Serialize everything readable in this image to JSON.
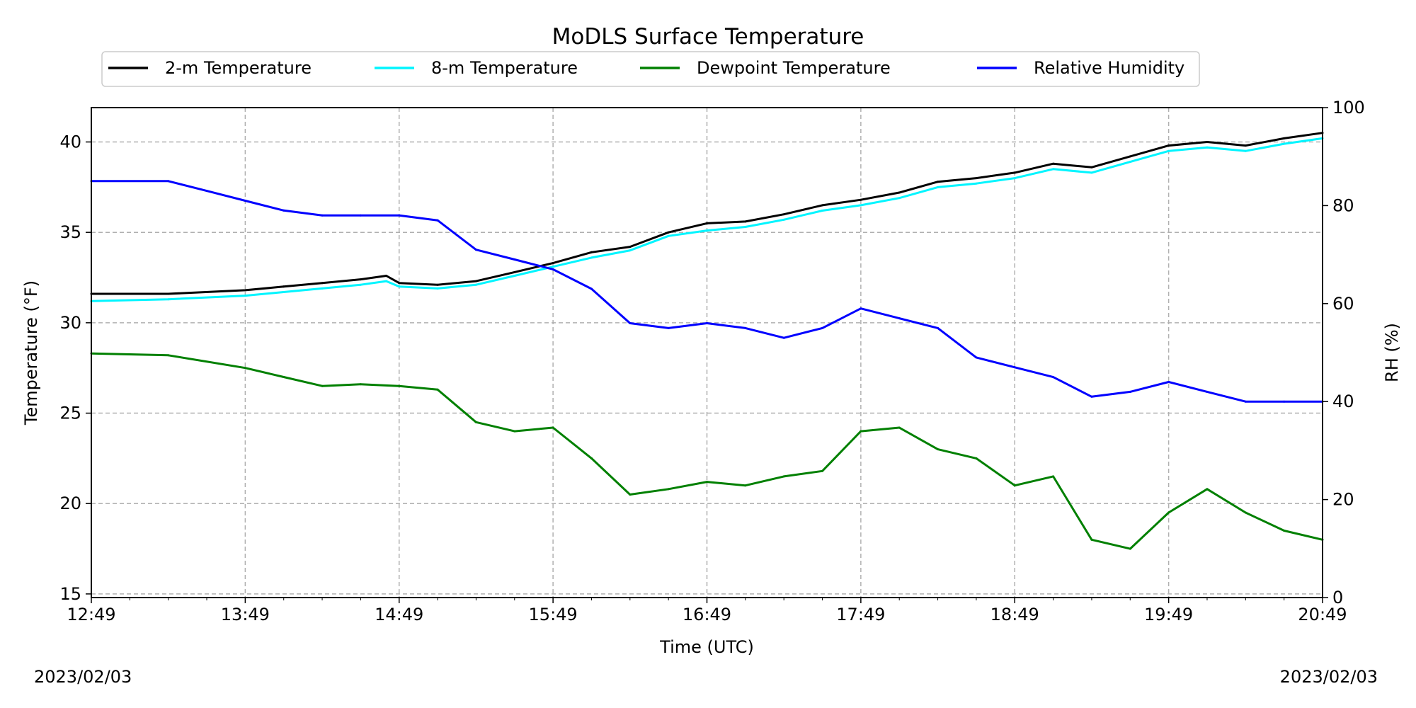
{
  "chart_data": {
    "type": "line",
    "title": "MoDLS Surface Temperature",
    "xlabel": "Time (UTC)",
    "ylabel": "Temperature ($^\\circ$F)",
    "ylabel_display": "Temperature (°F)",
    "y2label": "RH (%)",
    "xlim": [
      "12:49",
      "20:49"
    ],
    "ylim": [
      14.8,
      41.9
    ],
    "y2lim": [
      0,
      100
    ],
    "x_ticks": [
      "12:49",
      "13:49",
      "14:49",
      "15:49",
      "16:49",
      "17:49",
      "18:49",
      "19:49",
      "20:49"
    ],
    "y_ticks": [
      "15",
      "20",
      "25",
      "30",
      "35",
      "40"
    ],
    "y2_ticks": [
      "0",
      "20",
      "40",
      "60",
      "80",
      "100"
    ],
    "grid": true,
    "legend_position": "top",
    "series": [
      {
        "name": "2-m Temperature",
        "axis": "left",
        "color": "#000000",
        "x": [
          "12:49",
          "13:19",
          "13:49",
          "14:04",
          "14:19",
          "14:34",
          "14:44",
          "14:49",
          "15:04",
          "15:19",
          "15:34",
          "15:49",
          "16:04",
          "16:19",
          "16:34",
          "16:49",
          "17:04",
          "17:19",
          "17:34",
          "17:49",
          "18:04",
          "18:19",
          "18:34",
          "18:49",
          "19:04",
          "19:19",
          "19:34",
          "19:49",
          "20:04",
          "20:19",
          "20:34",
          "20:49"
        ],
        "values": [
          31.6,
          31.6,
          31.8,
          32.0,
          32.2,
          32.4,
          32.6,
          32.2,
          32.1,
          32.3,
          32.8,
          33.3,
          33.9,
          34.2,
          35.0,
          35.5,
          35.6,
          36.0,
          36.5,
          36.8,
          37.2,
          37.8,
          38.0,
          38.3,
          38.8,
          38.6,
          39.2,
          39.8,
          40.0,
          39.8,
          40.2,
          40.5
        ]
      },
      {
        "name": "8-m Temperature",
        "axis": "left",
        "color": "#00f5ff",
        "x": [
          "12:49",
          "13:19",
          "13:49",
          "14:04",
          "14:19",
          "14:34",
          "14:44",
          "14:49",
          "15:04",
          "15:19",
          "15:34",
          "15:49",
          "16:04",
          "16:19",
          "16:34",
          "16:49",
          "17:04",
          "17:19",
          "17:34",
          "17:49",
          "18:04",
          "18:19",
          "18:34",
          "18:49",
          "19:04",
          "19:19",
          "19:34",
          "19:49",
          "20:04",
          "20:19",
          "20:34",
          "20:49"
        ],
        "values": [
          31.2,
          31.3,
          31.5,
          31.7,
          31.9,
          32.1,
          32.3,
          32.0,
          31.9,
          32.1,
          32.6,
          33.1,
          33.6,
          34.0,
          34.8,
          35.1,
          35.3,
          35.7,
          36.2,
          36.5,
          36.9,
          37.5,
          37.7,
          38.0,
          38.5,
          38.3,
          38.9,
          39.5,
          39.7,
          39.5,
          39.9,
          40.2
        ]
      },
      {
        "name": "Dewpoint Temperature",
        "axis": "left",
        "color": "#008000",
        "x": [
          "12:49",
          "13:19",
          "13:49",
          "14:04",
          "14:19",
          "14:34",
          "14:49",
          "15:04",
          "15:19",
          "15:34",
          "15:49",
          "16:04",
          "16:19",
          "16:34",
          "16:49",
          "17:04",
          "17:19",
          "17:34",
          "17:49",
          "18:04",
          "18:19",
          "18:34",
          "18:49",
          "19:04",
          "19:19",
          "19:34",
          "19:49",
          "20:04",
          "20:19",
          "20:34",
          "20:49"
        ],
        "values": [
          28.3,
          28.2,
          27.5,
          27.0,
          26.5,
          26.6,
          26.5,
          26.3,
          24.5,
          24.0,
          24.2,
          22.5,
          20.5,
          20.8,
          21.2,
          21.0,
          21.5,
          21.8,
          24.0,
          24.2,
          23.0,
          22.5,
          21.0,
          21.5,
          18.0,
          17.5,
          19.5,
          20.8,
          19.5,
          18.5,
          18.0
        ]
      },
      {
        "name": "Relative Humidity",
        "axis": "right",
        "color": "#0000ff",
        "x": [
          "12:49",
          "13:19",
          "13:34",
          "13:49",
          "14:04",
          "14:19",
          "14:34",
          "14:49",
          "15:04",
          "15:19",
          "15:34",
          "15:49",
          "16:04",
          "16:19",
          "16:34",
          "16:49",
          "17:04",
          "17:19",
          "17:34",
          "17:49",
          "18:04",
          "18:19",
          "18:34",
          "18:49",
          "19:04",
          "19:19",
          "19:34",
          "19:49",
          "20:04",
          "20:19",
          "20:34",
          "20:49"
        ],
        "values": [
          85,
          85,
          83,
          81,
          79,
          78,
          78,
          78,
          77,
          71,
          69,
          67,
          63,
          56,
          55,
          56,
          55,
          53,
          55,
          59,
          57,
          55,
          49,
          47,
          45,
          41,
          42,
          44,
          42,
          40,
          40,
          40
        ]
      }
    ]
  },
  "footer": {
    "date_left": "2023/02/03",
    "date_right": "2023/02/03"
  }
}
